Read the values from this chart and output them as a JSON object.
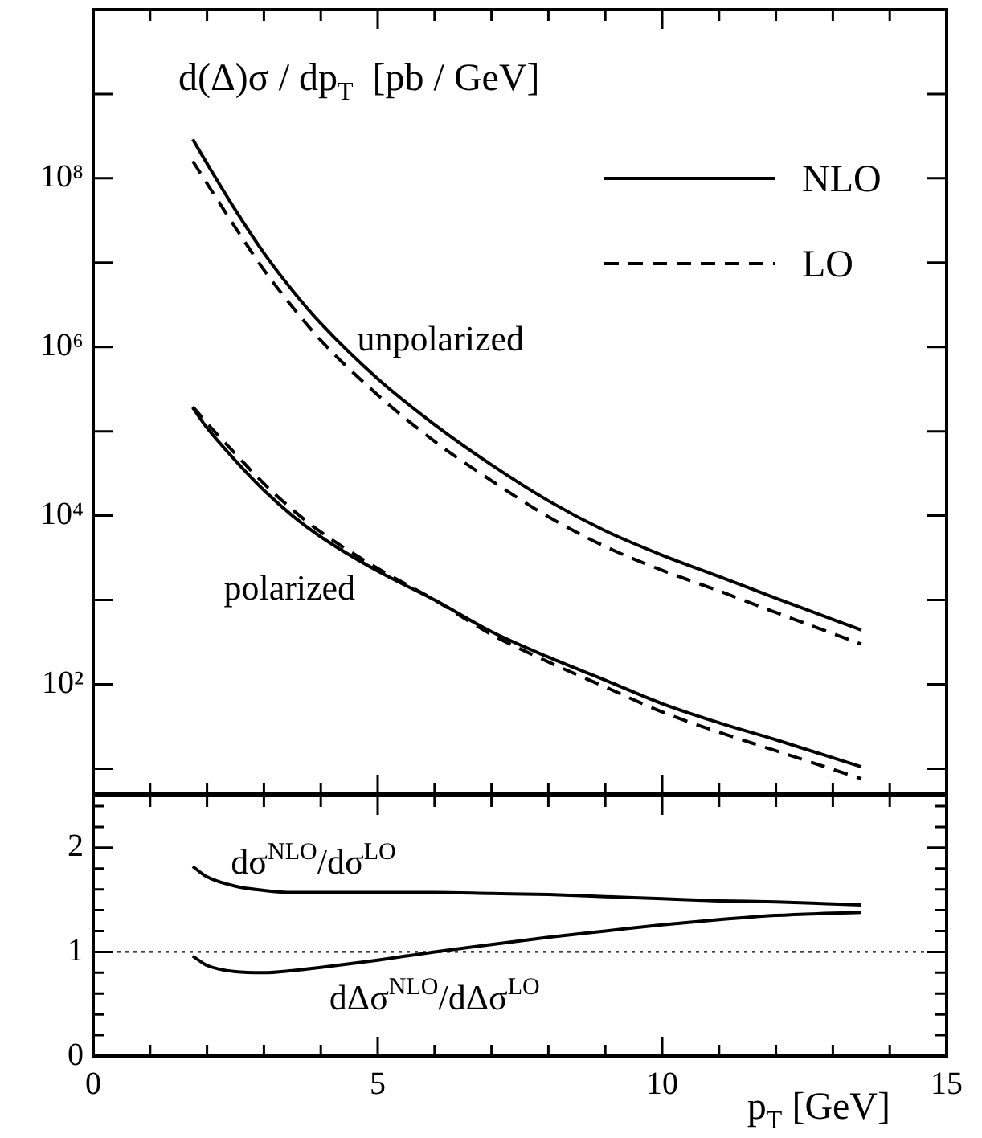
{
  "chart_data": [
    {
      "type": "line",
      "title": "d(Δ)σ / dp$_{T}$  [pb / GeV]",
      "log": "y",
      "legend": "top right",
      "marker": "none",
      "grid": false,
      "tick_labels": "y",
      "xlim": [
        0,
        15
      ],
      "xticks": [
        0,
        {
          "value": 1,
          "label": null
        },
        {
          "value": 2,
          "label": null
        },
        {
          "value": 3,
          "label": null
        },
        {
          "value": 4,
          "label": null
        },
        5,
        {
          "value": 6,
          "label": null
        },
        {
          "value": 7,
          "label": null
        },
        {
          "value": 8,
          "label": null
        },
        {
          "value": 9,
          "label": null
        },
        10,
        {
          "value": 11,
          "label": null
        },
        {
          "value": 12,
          "label": null
        },
        {
          "value": 13,
          "label": null
        },
        {
          "value": 14,
          "label": null
        },
        15
      ],
      "ylim": [
        5,
        10000000000
      ],
      "yticks": [
        {
          "value": 10,
          "label": null
        },
        {
          "value": 100,
          "label": "10²"
        },
        {
          "value": 1000,
          "label": null
        },
        {
          "value": 10000,
          "label": "10⁴"
        },
        {
          "value": 100000,
          "label": null
        },
        {
          "value": 1000000,
          "label": "10⁶"
        },
        {
          "value": 10000000,
          "label": null
        },
        {
          "value": 100000000,
          "label": "10⁸"
        },
        {
          "value": 1000000000,
          "label": null
        }
      ],
      "x": [
        1.75,
        2,
        2.5,
        3,
        3.5,
        4,
        5,
        6,
        7,
        8,
        9,
        10,
        11,
        12,
        13.5
      ],
      "series": [
        {
          "name": "NLO",
          "color": "#000000",
          "line_style": "solid",
          "values": [
            290000000,
            150000000,
            42000000,
            13000000,
            4700000,
            1900000,
            420000,
            120000,
            40000,
            15000,
            6600,
            3400,
            1900,
            1050,
            440
          ]
        },
        {
          "name": "LO",
          "color": "#000000",
          "line_style": "dashed",
          "values": [
            160000000,
            87000000,
            26000000,
            8200000,
            3000000,
            1200000,
            270000,
            76000,
            26000,
            9700,
            4300,
            2250,
            1280,
            710,
            300
          ]
        },
        {
          "color": "#000000",
          "line_style": "solid",
          "values": [
            190000,
            110000,
            45000,
            20000,
            10000,
            5600,
            2200,
            1000,
            420,
            210,
            112,
            59,
            35,
            22,
            10.5
          ]
        },
        {
          "color": "#000000",
          "line_style": "dashed",
          "values": [
            196000,
            125000,
            54000,
            24000,
            11800,
            6400,
            2370,
            1000,
            390,
            184,
            93,
            47,
            27,
            16.3,
            7.6
          ]
        }
      ],
      "annotations": [
        "unpolarized",
        "polarized"
      ]
    },
    {
      "type": "line",
      "xlabel": "p$_{T}$ [GeV]",
      "marker": "none",
      "grid": false,
      "legend": false,
      "xlim": [
        0,
        15
      ],
      "xticks": [
        0,
        {
          "value": 1,
          "label": null
        },
        {
          "value": 2,
          "label": null
        },
        {
          "value": 3,
          "label": null
        },
        {
          "value": 4,
          "label": null
        },
        5,
        {
          "value": 6,
          "label": null
        },
        {
          "value": 7,
          "label": null
        },
        {
          "value": 8,
          "label": null
        },
        {
          "value": 9,
          "label": null
        },
        10,
        {
          "value": 11,
          "label": null
        },
        {
          "value": 12,
          "label": null
        },
        {
          "value": 13,
          "label": null
        },
        {
          "value": 14,
          "label": null
        },
        15
      ],
      "ylim": [
        0,
        2.5
      ],
      "yticks": [
        0,
        {
          "value": 0.2,
          "label": null
        },
        {
          "value": 0.4,
          "label": null
        },
        {
          "value": 0.6,
          "label": null
        },
        {
          "value": 0.8,
          "label": null
        },
        1,
        {
          "value": 1.2,
          "label": null
        },
        {
          "value": 1.4,
          "label": null
        },
        {
          "value": 1.6,
          "label": null
        },
        {
          "value": 1.8,
          "label": null
        },
        2,
        {
          "value": 2.2,
          "label": null
        },
        {
          "value": 2.4,
          "label": null
        }
      ],
      "x": [
        1.75,
        2,
        2.5,
        3,
        3.5,
        4,
        5,
        6,
        7,
        8,
        9,
        10,
        11,
        12,
        13.5
      ],
      "series": [
        {
          "color": "#000000",
          "line_style": "solid",
          "values": [
            1.82,
            1.72,
            1.63,
            1.59,
            1.57,
            1.57,
            1.57,
            1.57,
            1.56,
            1.55,
            1.53,
            1.51,
            1.49,
            1.48,
            1.45
          ]
        },
        {
          "color": "#000000",
          "line_style": "solid",
          "values": [
            0.96,
            0.87,
            0.81,
            0.8,
            0.82,
            0.85,
            0.92,
            1.0,
            1.07,
            1.14,
            1.2,
            1.26,
            1.31,
            1.35,
            1.38
          ]
        }
      ],
      "ref_lines": [
        {
          "axis": "y",
          "value": 1,
          "line_style": "dotted"
        }
      ],
      "annotations": [
        "dσ$^{NLO}$/dσ$^{LO}$",
        "dΔσ$^{NLO}$/dΔσ$^{LO}$"
      ]
    }
  ]
}
